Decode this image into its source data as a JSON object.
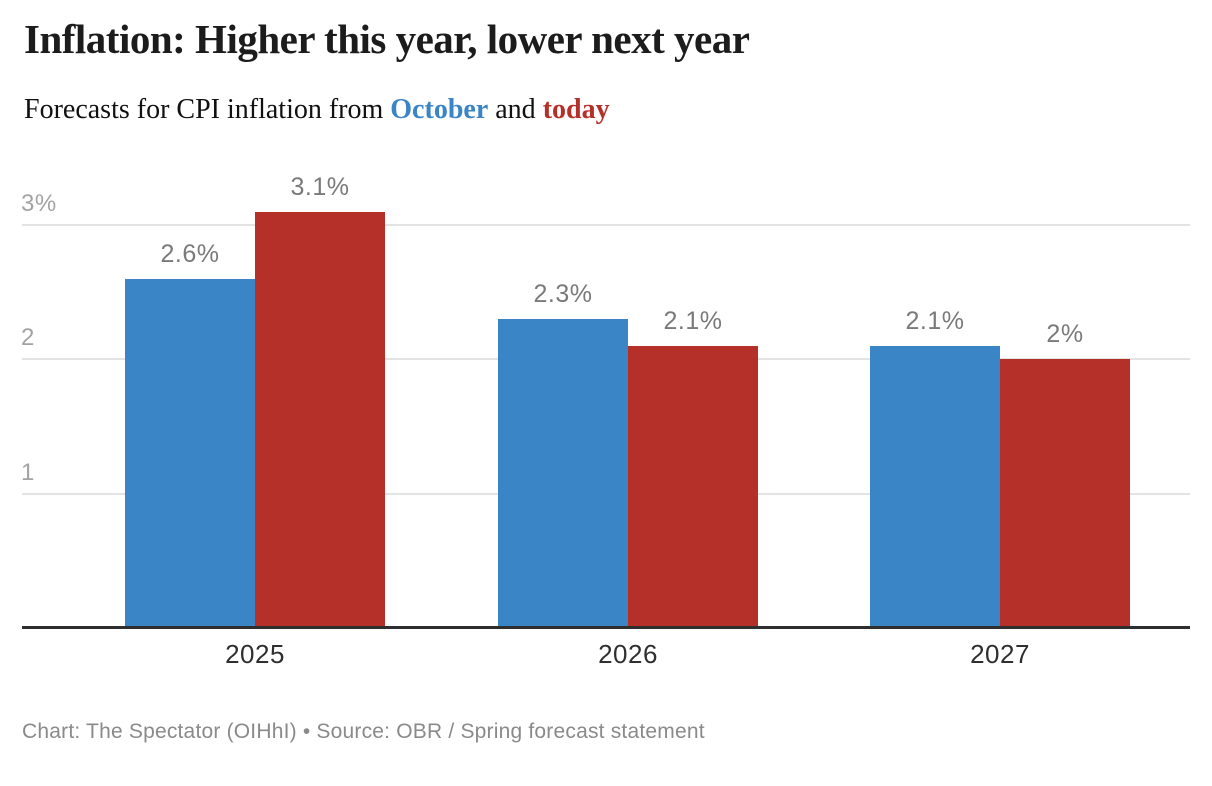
{
  "header": {
    "title": "Inflation: Higher this year, lower next year",
    "subtitle": {
      "prefix": "Forecasts for CPI inflation from ",
      "series_blue": "October",
      "connector": " and ",
      "series_red": "today"
    }
  },
  "colors": {
    "october_blue": "#3a85c5",
    "today_red": "#b43028",
    "title_text": "#1c1c1c",
    "subtitle_text": "#111111",
    "grid_line": "#e3e3e3",
    "axis_line": "#2e2e2e",
    "y_tick_label": "#a3a3a3",
    "value_label": "#7a7a7a",
    "category_label": "#2f2f2f",
    "footer_text": "#8a8a8a"
  },
  "chart_data": {
    "type": "bar",
    "title": "Inflation: Higher this year, lower next year",
    "subtitle": "Forecasts for CPI inflation from October and today",
    "categories": [
      "2025",
      "2026",
      "2027"
    ],
    "series": [
      {
        "name": "October",
        "color": "#3a85c5",
        "values": [
          2.6,
          2.3,
          2.1
        ],
        "labels": [
          "2.6%",
          "2.3%",
          "2.1%"
        ]
      },
      {
        "name": "today",
        "color": "#b43028",
        "values": [
          3.1,
          2.1,
          2.0
        ],
        "labels": [
          "3.1%",
          "2.1%",
          "2%"
        ]
      }
    ],
    "yticks": [
      {
        "value": 3,
        "label": "3%"
      },
      {
        "value": 2,
        "label": "2"
      },
      {
        "value": 1,
        "label": "1"
      }
    ],
    "ylim": [
      0,
      3.3
    ],
    "xlabel": "",
    "ylabel": "",
    "grid": true,
    "legend_position": "inline-subtitle"
  },
  "footer": {
    "credit": "Chart: The Spectator (OIHhI) • Source: OBR / Spring forecast statement"
  }
}
